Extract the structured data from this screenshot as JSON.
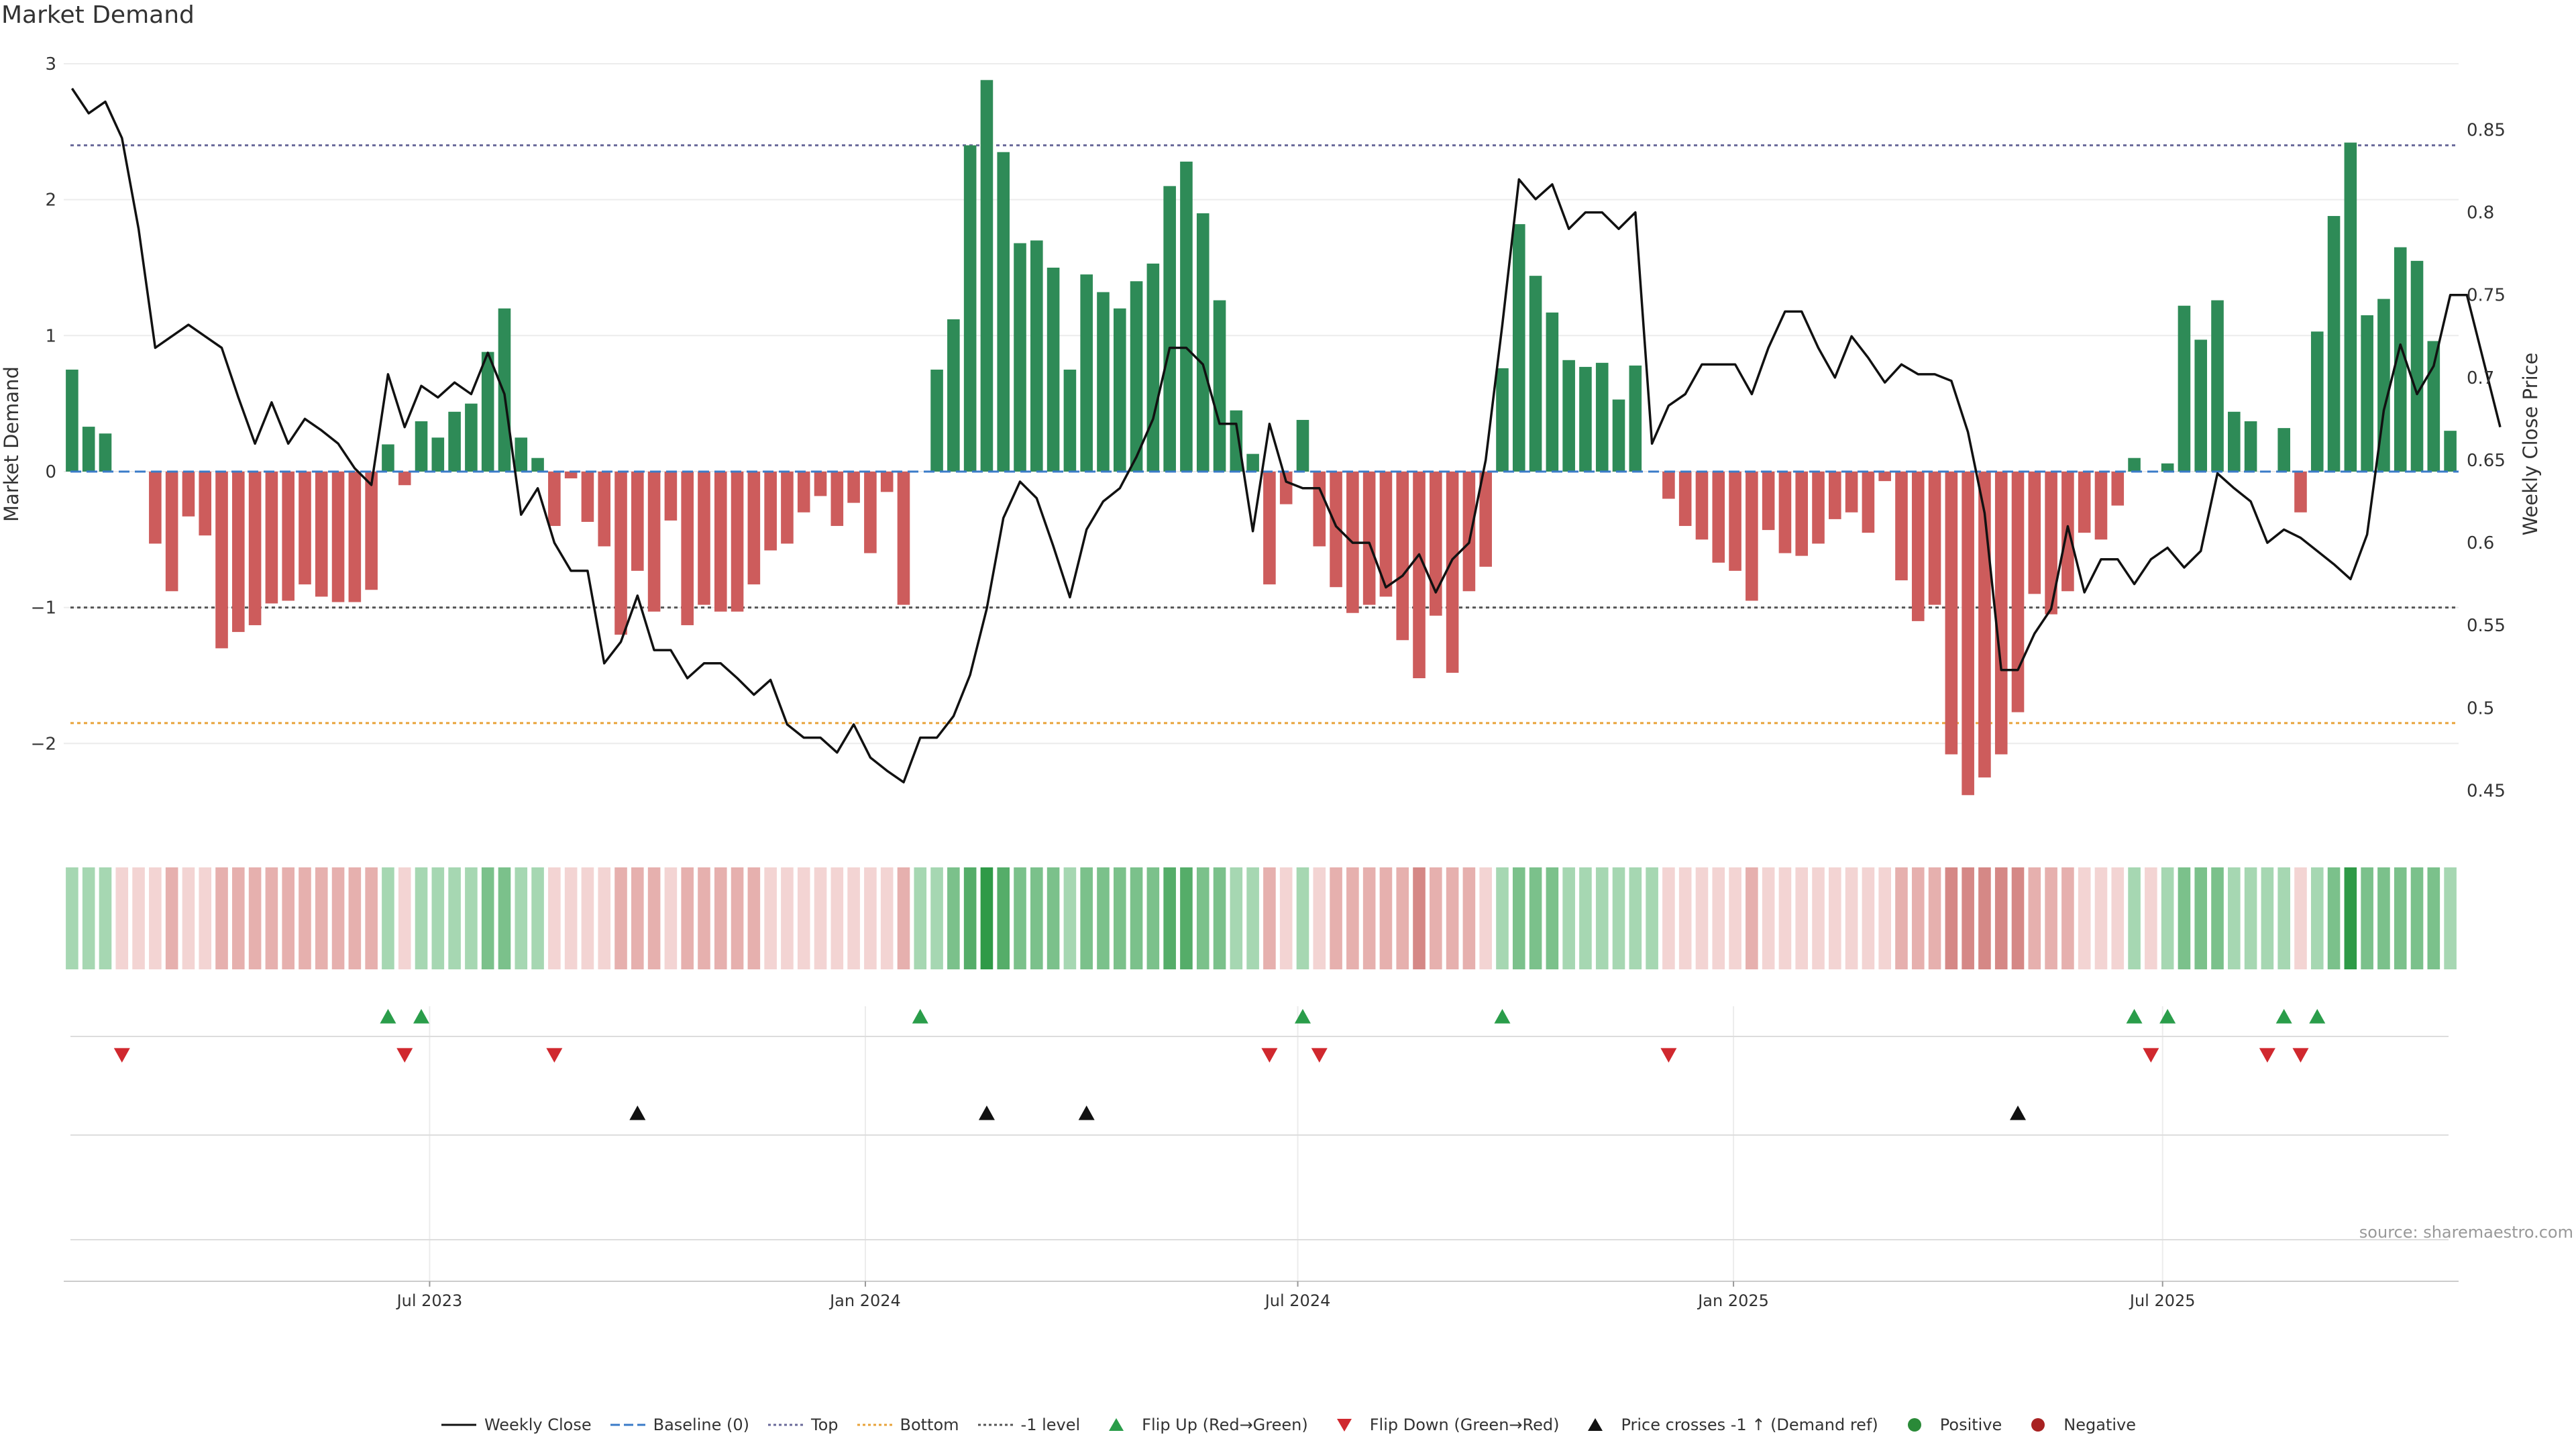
{
  "chart_data": {
    "type": "bar",
    "title": "Market Demand",
    "ylabel_left": "Market Demand",
    "ylabel_right": "Weekly Close Price",
    "ylim_left": [
      -2.65,
      3.0
    ],
    "ylim_right": [
      0.425,
      0.89
    ],
    "yticks_left": [
      3,
      2,
      1,
      0,
      -1,
      -2
    ],
    "yticks_left_labels": [
      "3",
      "2",
      "1",
      "0",
      "−1",
      "−2"
    ],
    "yticks_right": [
      0.85,
      0.8,
      0.75,
      0.7,
      0.65,
      0.6,
      0.55,
      0.5,
      0.45
    ],
    "yticks_right_labels": [
      "0.85",
      "0.8",
      "0.75",
      "0.7",
      "0.65",
      "0.6",
      "0.55",
      "0.5",
      "0.45"
    ],
    "reference_lines": {
      "top": 2.4,
      "bottom": -1.85,
      "minus_one": -1.0,
      "baseline": 0
    },
    "x_ticks": [
      {
        "label": "Jul 2023",
        "week": 22
      },
      {
        "label": "Jan 2024",
        "week": 48.2
      },
      {
        "label": "Jul 2024",
        "week": 74.2
      },
      {
        "label": "Jan 2025",
        "week": 100.4
      },
      {
        "label": "Jul 2025",
        "week": 126.2
      }
    ],
    "demand": [
      0.75,
      0.33,
      0.28,
      0.0,
      0.0,
      -0.53,
      -0.88,
      -0.33,
      -0.47,
      -1.3,
      -1.18,
      -1.13,
      -0.97,
      -0.95,
      -0.83,
      -0.92,
      -0.96,
      -0.96,
      -0.87,
      0.2,
      -0.1,
      0.37,
      0.25,
      0.44,
      0.5,
      0.88,
      1.2,
      0.25,
      0.1,
      -0.4,
      -0.05,
      -0.37,
      -0.55,
      -1.2,
      -0.73,
      -1.03,
      -0.36,
      -1.13,
      -0.98,
      -1.03,
      -1.03,
      -0.83,
      -0.58,
      -0.53,
      -0.3,
      -0.18,
      -0.4,
      -0.23,
      -0.6,
      -0.15,
      -0.98,
      0.0,
      0.75,
      1.12,
      2.4,
      2.88,
      2.35,
      1.68,
      1.7,
      1.5,
      0.75,
      1.45,
      1.32,
      1.2,
      1.4,
      1.53,
      2.1,
      2.28,
      1.9,
      1.26,
      0.45,
      0.13,
      -0.83,
      -0.24,
      0.38,
      -0.55,
      -0.85,
      -1.04,
      -0.98,
      -0.92,
      -1.24,
      -1.52,
      -1.06,
      -1.48,
      -0.88,
      -0.7,
      0.76,
      1.82,
      1.44,
      1.17,
      0.82,
      0.77,
      0.8,
      0.53,
      0.78,
      0.0,
      -0.2,
      -0.4,
      -0.5,
      -0.67,
      -0.73,
      -0.95,
      -0.43,
      -0.6,
      -0.62,
      -0.53,
      -0.35,
      -0.3,
      -0.45,
      -0.07,
      -0.8,
      -1.1,
      -0.98,
      -2.08,
      -2.38,
      -2.25,
      -2.08,
      -1.77,
      -0.9,
      -1.05,
      -0.88,
      -0.45,
      -0.5,
      -0.25,
      0.1,
      0.0,
      0.06,
      1.22,
      0.97,
      1.26,
      0.44,
      0.37,
      0.0,
      0.32,
      -0.3,
      1.03,
      1.88,
      2.42,
      1.15,
      1.27,
      1.65,
      1.55,
      0.96,
      0.3
    ],
    "weekly_close": [
      0.875,
      0.86,
      0.867,
      0.845,
      0.79,
      0.718,
      0.725,
      0.732,
      0.725,
      0.718,
      0.688,
      0.66,
      0.685,
      0.66,
      0.675,
      0.668,
      0.66,
      0.645,
      0.635,
      0.702,
      0.67,
      0.695,
      0.688,
      0.697,
      0.69,
      0.715,
      0.69,
      0.617,
      0.633,
      0.6,
      0.583,
      0.583,
      0.527,
      0.54,
      0.568,
      0.535,
      0.535,
      0.518,
      0.527,
      0.527,
      0.518,
      0.508,
      0.517,
      0.49,
      0.482,
      0.482,
      0.473,
      0.49,
      0.47,
      0.462,
      0.455,
      0.482,
      0.482,
      0.495,
      0.52,
      0.56,
      0.615,
      0.637,
      0.627,
      0.598,
      0.567,
      0.608,
      0.625,
      0.633,
      0.652,
      0.675,
      0.718,
      0.718,
      0.708,
      0.672,
      0.672,
      0.607,
      0.672,
      0.637,
      0.633,
      0.633,
      0.61,
      0.6,
      0.6,
      0.573,
      0.58,
      0.593,
      0.57,
      0.59,
      0.6,
      0.65,
      0.732,
      0.82,
      0.808,
      0.817,
      0.79,
      0.8,
      0.8,
      0.79,
      0.8,
      0.66,
      0.683,
      0.69,
      0.708,
      0.708,
      0.708,
      0.69,
      0.718,
      0.74,
      0.74,
      0.718,
      0.7,
      0.725,
      0.712,
      0.697,
      0.708,
      0.702,
      0.702,
      0.698,
      0.667,
      0.618,
      0.523,
      0.523,
      0.545,
      0.56,
      0.61,
      0.57,
      0.59,
      0.59,
      0.575,
      0.59,
      0.597,
      0.585,
      0.595,
      0.642,
      0.633,
      0.625,
      0.6,
      0.608,
      0.603,
      0.595,
      0.587,
      0.578,
      0.605,
      0.68,
      0.72,
      0.69,
      0.707,
      0.75,
      0.75,
      0.71,
      0.67
    ],
    "color_strip": [
      1,
      1,
      1,
      -1,
      -1,
      -1,
      -2,
      -1,
      -1,
      -2,
      -2,
      -2,
      -2,
      -2,
      -2,
      -2,
      -2,
      -2,
      -2,
      1,
      -1,
      1,
      1,
      1,
      1,
      2,
      2,
      1,
      1,
      -1,
      -1,
      -1,
      -1,
      -2,
      -2,
      -2,
      -1,
      -2,
      -2,
      -2,
      -2,
      -2,
      -1,
      -1,
      -1,
      -1,
      -1,
      -1,
      -1,
      -1,
      -2,
      1,
      1,
      2,
      3,
      4,
      3,
      2,
      2,
      2,
      1,
      2,
      2,
      2,
      2,
      2,
      3,
      3,
      2,
      2,
      1,
      1,
      -2,
      -1,
      1,
      -1,
      -2,
      -2,
      -2,
      -2,
      -2,
      -3,
      -2,
      -2,
      -2,
      -1,
      1,
      2,
      2,
      2,
      1,
      1,
      1,
      1,
      1,
      1,
      -1,
      -1,
      -1,
      -1,
      -1,
      -2,
      -1,
      -1,
      -1,
      -1,
      -1,
      -1,
      -1,
      -1,
      -2,
      -2,
      -2,
      -3,
      -3,
      -3,
      -3,
      -3,
      -2,
      -2,
      -2,
      -1,
      -1,
      -1,
      1,
      -1,
      1,
      2,
      2,
      2,
      1,
      1,
      1,
      1,
      -1,
      1,
      2,
      4,
      2,
      2,
      2,
      2,
      2,
      1
    ],
    "flip_up_weeks": [
      19,
      21,
      51,
      74,
      86,
      124,
      126,
      133,
      135
    ],
    "flip_down_weeks": [
      3,
      20,
      29,
      72,
      75,
      96,
      125,
      132,
      134
    ],
    "price_cross_weeks": [
      34,
      55,
      61,
      117
    ],
    "legend": [
      {
        "label": "Weekly Close",
        "symbol": "line",
        "color": "#111111"
      },
      {
        "label": "Baseline (0)",
        "symbol": "dash",
        "color": "#3a7bc8"
      },
      {
        "label": "Top",
        "symbol": "dot",
        "color": "#6a6a9a"
      },
      {
        "label": "Bottom",
        "symbol": "dot",
        "color": "#e8a33a"
      },
      {
        "label": "-1 level",
        "symbol": "dot",
        "color": "#555555"
      },
      {
        "label": "Flip Up (Red→Green)",
        "symbol": "tri-up",
        "color": "#2a9d4a"
      },
      {
        "label": "Flip Down (Green→Red)",
        "symbol": "tri-down",
        "color": "#d0282e"
      },
      {
        "label": "Price crosses -1 ↑ (Demand ref)",
        "symbol": "tri-up",
        "color": "#111111"
      },
      {
        "label": "Positive",
        "symbol": "circle",
        "color": "#2a8a38"
      },
      {
        "label": "Negative",
        "symbol": "circle",
        "color": "#a82222"
      }
    ],
    "source": "source: sharemaestro.com"
  },
  "colors": {
    "positive_bar": "#2e8b57",
    "negative_bar": "#cd5c5c",
    "close_line": "#111111",
    "top_line": "#6a6a9a",
    "bottom_line": "#e8a33a",
    "minus_one_line": "#555555",
    "baseline": "#3a7bc8",
    "flip_up": "#2a9d4a",
    "flip_down": "#d0282e",
    "cross": "#111111"
  }
}
